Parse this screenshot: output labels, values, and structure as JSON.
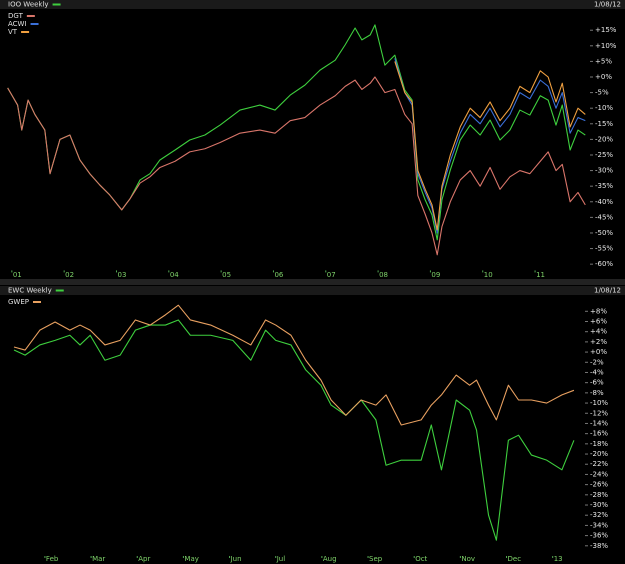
{
  "chart_data": [
    {
      "type": "line",
      "title": "IOO Weekly",
      "date": "1/08/12",
      "x": [
        2000.92,
        2001.0,
        2001.11,
        2001.19,
        2001.31,
        2001.44,
        2001.63,
        2001.73,
        2001.92,
        2002.11,
        2002.3,
        2002.49,
        2002.68,
        2002.87,
        2003.1,
        2003.26,
        2003.45,
        2003.64,
        2003.83,
        2004.12,
        2004.4,
        2004.69,
        2004.98,
        2005.36,
        2005.74,
        2006.03,
        2006.32,
        2006.6,
        2006.89,
        2007.18,
        2007.37,
        2007.56,
        2007.69,
        2007.85,
        2007.94,
        2008.13,
        2008.32,
        2008.51,
        2008.65,
        2008.76,
        2008.9,
        2009.03,
        2009.13,
        2009.22,
        2009.38,
        2009.57,
        2009.76,
        2009.95,
        2010.14,
        2010.33,
        2010.52,
        2010.71,
        2010.9,
        2011.1,
        2011.25,
        2011.4,
        2011.52,
        2011.67,
        2011.82,
        2011.96
      ],
      "series": [
        {
          "color": "#3ecf3e",
          "values": [
            -3.5,
            -5.8,
            -9,
            -17,
            -7.4,
            -12,
            -17,
            -31,
            -20,
            -18.6,
            -26.6,
            -31,
            -34.6,
            -37.8,
            -42.6,
            -39,
            -33,
            -31,
            -26.6,
            -23.4,
            -20.2,
            -18.6,
            -15.4,
            -10.6,
            -9,
            -10.6,
            -5.8,
            -2.6,
            2.2,
            5.4,
            10.3,
            15.7,
            11.9,
            13.5,
            16.7,
            3.8,
            7,
            -4.2,
            -7.4,
            -33,
            -39.4,
            -44.2,
            -52.2,
            -39.4,
            -29.8,
            -20.2,
            -15.4,
            -18.6,
            -13.8,
            -20.2,
            -17,
            -10.6,
            -12.2,
            -6,
            -7.4,
            -15.4,
            -9,
            -23.4,
            -17,
            -18.6
          ]
        },
        {
          "name": "DGT",
          "color": "#d9756a",
          "values": [
            -3.5,
            -5.8,
            -9,
            -17,
            -7.4,
            -12,
            -17,
            -31,
            -20,
            -18.6,
            -26.6,
            -31,
            -34.6,
            -37.8,
            -42.6,
            -39,
            -34,
            -32,
            -29,
            -27,
            -24,
            -23,
            -21,
            -18,
            -17,
            -18,
            -14,
            -13,
            -9,
            -6,
            -3,
            -1,
            -4,
            -2,
            0,
            -5,
            -4,
            -12,
            -15,
            -38,
            -44,
            -50,
            -57,
            -48,
            -40,
            -33,
            -30,
            -35,
            -29,
            -36,
            -32,
            -30,
            -31,
            -27,
            -24,
            -30,
            -28,
            -40,
            -37,
            -41
          ]
        },
        {
          "name": "ACWI",
          "color": "#3a6fd8",
          "values": [
            null,
            null,
            null,
            null,
            null,
            null,
            null,
            null,
            null,
            null,
            null,
            null,
            null,
            null,
            null,
            null,
            null,
            null,
            null,
            null,
            null,
            null,
            null,
            null,
            null,
            null,
            null,
            null,
            null,
            null,
            null,
            null,
            null,
            null,
            null,
            null,
            6,
            -5,
            -9,
            -31,
            -37,
            -42,
            -50,
            -36,
            -27,
            -18,
            -12,
            -15,
            -10,
            -16,
            -12,
            -5,
            -7,
            -1,
            -3,
            -10,
            -5,
            -18,
            -13,
            -14
          ]
        },
        {
          "name": "VT",
          "color": "#f0a040",
          "values": [
            null,
            null,
            null,
            null,
            null,
            null,
            null,
            null,
            null,
            null,
            null,
            null,
            null,
            null,
            null,
            null,
            null,
            null,
            null,
            null,
            null,
            null,
            null,
            null,
            null,
            null,
            null,
            null,
            null,
            null,
            null,
            null,
            null,
            null,
            null,
            null,
            5,
            -5,
            -8,
            -30,
            -36,
            -41,
            -49,
            -35,
            -25,
            -16,
            -10,
            -13,
            -8,
            -14,
            -10,
            -3,
            -5,
            2,
            0,
            -8,
            -2,
            -16,
            -10,
            -12
          ]
        }
      ],
      "xlim": [
        2000.85,
        2012.05
      ],
      "xticks": [
        {
          "value": 2001,
          "label": "01"
        },
        {
          "value": 2002,
          "label": "02"
        },
        {
          "value": 2003,
          "label": "03"
        },
        {
          "value": 2004,
          "label": "04"
        },
        {
          "value": 2005,
          "label": "05"
        },
        {
          "value": 2006,
          "label": "06"
        },
        {
          "value": 2007,
          "label": "07"
        },
        {
          "value": 2008,
          "label": "08"
        },
        {
          "value": 2009,
          "label": "09"
        },
        {
          "value": 2010,
          "label": "10"
        },
        {
          "value": 2011,
          "label": "11"
        }
      ],
      "ylim": [
        -62,
        21
      ],
      "yticks": [
        {
          "value": 15,
          "label": "+15%"
        },
        {
          "value": 10,
          "label": "+10%"
        },
        {
          "value": 5,
          "label": "+5%"
        },
        {
          "value": 0,
          "label": "+0%"
        },
        {
          "value": -5,
          "label": "-5%"
        },
        {
          "value": -10,
          "label": "-10%"
        },
        {
          "value": -15,
          "label": "-15%"
        },
        {
          "value": -20,
          "label": "-20%"
        },
        {
          "value": -25,
          "label": "-25%"
        },
        {
          "value": -30,
          "label": "-30%"
        },
        {
          "value": -35,
          "label": "-35%"
        },
        {
          "value": -40,
          "label": "-40%"
        },
        {
          "value": -45,
          "label": "-45%"
        },
        {
          "value": -50,
          "label": "-50%"
        },
        {
          "value": -55,
          "label": "-55%"
        },
        {
          "value": -60,
          "label": "-60%"
        }
      ]
    },
    {
      "type": "line",
      "title": "EWC Weekly",
      "date": "1/08/12",
      "x": [
        1.33,
        1.57,
        1.89,
        2.22,
        2.54,
        2.76,
        2.98,
        3.3,
        3.63,
        3.96,
        4.28,
        4.61,
        4.89,
        5.15,
        5.59,
        6.07,
        6.46,
        6.78,
        7.0,
        7.33,
        7.65,
        7.98,
        8.2,
        8.52,
        8.85,
        9.17,
        9.39,
        9.72,
        10.15,
        10.37,
        10.59,
        10.91,
        11.2,
        11.35,
        11.61,
        11.78,
        12.04,
        12.26,
        12.54,
        12.87,
        13.2,
        13.46
      ],
      "series": [
        {
          "color": "#3ecf3e",
          "values": [
            0.4,
            -0.6,
            1.4,
            2.3,
            3.3,
            1.4,
            3.3,
            -1.6,
            -0.6,
            4.3,
            5.3,
            5.3,
            6.3,
            3.3,
            3.3,
            2.3,
            -1.6,
            4.3,
            2.3,
            1.4,
            -3.5,
            -6.5,
            -10.4,
            -12.4,
            -9.4,
            -13.3,
            -22.2,
            -21.2,
            -21.2,
            -14.3,
            -23.1,
            -9.4,
            -11.4,
            -15.3,
            -32,
            -36.9,
            -17.3,
            -16.3,
            -20.2,
            -21.2,
            -23.1,
            -17.3
          ]
        },
        {
          "name": "GWEP",
          "color": "#e8a060",
          "values": [
            1,
            0.4,
            4.3,
            5.9,
            4.3,
            5.3,
            4.3,
            1.4,
            2.3,
            6.3,
            5.3,
            7.3,
            9.2,
            6.3,
            5.3,
            3.3,
            1.4,
            6.3,
            5.3,
            3.3,
            -1.6,
            -5.5,
            -9.4,
            -12.4,
            -9.4,
            -10.4,
            -8.4,
            -14.3,
            -13.3,
            -10.4,
            -8.4,
            -4.5,
            -6.5,
            -5.5,
            -10.4,
            -13.3,
            -6.5,
            -9.4,
            -9.4,
            -10,
            -8.4,
            -7.5
          ]
        }
      ],
      "xlim": [
        1.2,
        13.7
      ],
      "xticks": [
        {
          "value": 2,
          "label": "Feb"
        },
        {
          "value": 3,
          "label": "Mar"
        },
        {
          "value": 4,
          "label": "Apr"
        },
        {
          "value": 5,
          "label": "May"
        },
        {
          "value": 6,
          "label": "Jun"
        },
        {
          "value": 7,
          "label": "Jul"
        },
        {
          "value": 8,
          "label": "Aug"
        },
        {
          "value": 9,
          "label": "Sep"
        },
        {
          "value": 10,
          "label": "Oct"
        },
        {
          "value": 11,
          "label": "Nov"
        },
        {
          "value": 12,
          "label": "Dec"
        },
        13
      ],
      "ylim": [
        -40,
        11
      ],
      "yticks": [
        {
          "value": 8,
          "label": "+8%"
        },
        {
          "value": 6,
          "label": "+6%"
        },
        {
          "value": 4,
          "label": "+4%"
        },
        {
          "value": 2,
          "label": "+2%"
        },
        {
          "value": 0,
          "label": "+0%"
        },
        {
          "value": -2,
          "label": "-2%"
        },
        {
          "value": -4,
          "label": "-4%"
        },
        {
          "value": -6,
          "label": "-6%"
        },
        {
          "value": -8,
          "label": "-8%"
        },
        {
          "value": -10,
          "label": "-10%"
        },
        {
          "value": -12,
          "label": "-12%"
        },
        {
          "value": -14,
          "label": "-14%"
        },
        {
          "value": -16,
          "label": "-16%"
        },
        {
          "value": -18,
          "label": "-18%"
        },
        {
          "value": -20,
          "label": "-20%"
        },
        {
          "value": -22,
          "label": "-22%"
        },
        {
          "value": -24,
          "label": "-24%"
        },
        {
          "value": -26,
          "label": "-26%"
        },
        {
          "value": -28,
          "label": "-28%"
        },
        {
          "value": -30,
          "label": "-30%"
        },
        {
          "value": -32,
          "label": "-32%"
        },
        {
          "value": -34,
          "label": "-34%"
        },
        {
          "value": -36,
          "label": "-36%"
        },
        {
          "value": -38,
          "label": "-38%"
        }
      ]
    }
  ]
}
